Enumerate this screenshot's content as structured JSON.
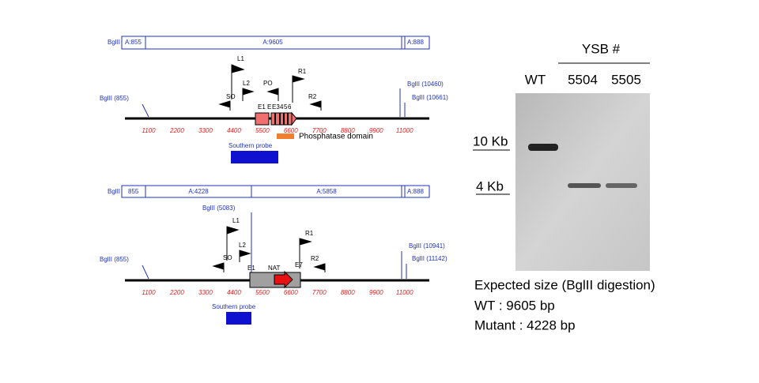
{
  "top_map": {
    "header": [
      "BglII",
      "A:855",
      "A:9605",
      "A:888"
    ],
    "sites": [
      "BglII (855)",
      "BglII (10460)",
      "BglII (10661)"
    ],
    "primers": [
      "L1",
      "L2",
      "SO",
      "PO",
      "R1",
      "R2"
    ],
    "exons": [
      "E1",
      "E",
      "E3",
      "4",
      "5",
      "6"
    ],
    "ticks": [
      1100,
      2200,
      3300,
      4400,
      5500,
      6600,
      7700,
      8800,
      9900,
      11000
    ],
    "domain": "Phosphatase domain",
    "probe": "Southern probe"
  },
  "bottom_map": {
    "header": [
      "BglII",
      "855",
      "A:4228",
      "A:5858",
      "A:888"
    ],
    "sites": [
      "BglII (5083)",
      "BglII (855)",
      "BglII (10941)",
      "BglII (11142)"
    ],
    "primers": [
      "L1",
      "L2",
      "SO",
      "R1",
      "R2"
    ],
    "labels": [
      "E1",
      "NAT",
      "E7"
    ],
    "ticks": [
      1100,
      2200,
      3300,
      4400,
      5500,
      6600,
      7700,
      8800,
      9900,
      11000
    ],
    "probe": "Southern probe"
  },
  "gel": {
    "group": "YSB #",
    "lanes": [
      "WT",
      "5504",
      "5505"
    ],
    "markers": [
      "10 Kb",
      "4 Kb"
    ]
  },
  "caption": [
    "Expected size (BglII digestion)",
    "WT : 9605 bp",
    "Mutant : 4228 bp"
  ]
}
